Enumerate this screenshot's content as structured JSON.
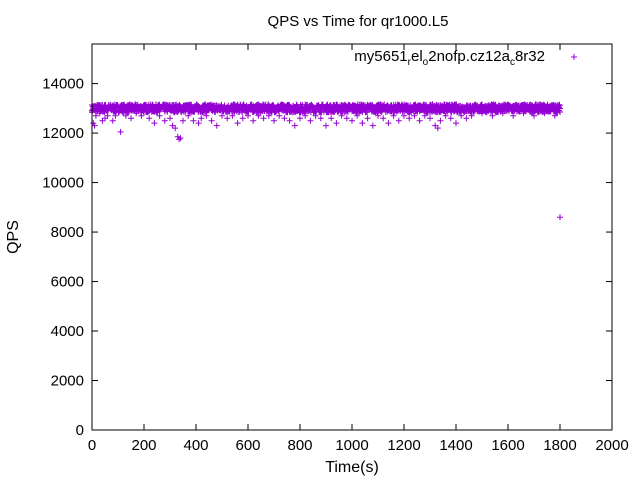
{
  "chart_data": {
    "type": "scatter",
    "title": "QPS vs Time for qr1000.L5",
    "xlabel": "Time(s)",
    "ylabel": "QPS",
    "xlim": [
      0,
      2000
    ],
    "ylim": [
      0,
      15600
    ],
    "x_ticks": [
      0,
      200,
      400,
      600,
      800,
      1000,
      1200,
      1400,
      1600,
      1800,
      2000
    ],
    "y_ticks": [
      0,
      2000,
      4000,
      6000,
      8000,
      10000,
      12000,
      14000
    ],
    "grid": false,
    "legend_position": "top-right",
    "marker": "plus",
    "series": [
      {
        "legend_parts": [
          {
            "text": "my5651",
            "sub": false
          },
          {
            "text": "r",
            "sub": true
          },
          {
            "text": "el",
            "sub": false
          },
          {
            "text": "o",
            "sub": true
          },
          {
            "text": "2nofp.cz12a",
            "sub": false
          },
          {
            "text": "c",
            "sub": true
          },
          {
            "text": "8r32",
            "sub": false
          }
        ],
        "color": "#9400d3",
        "baseline_qps": 13000,
        "x_start": 0,
        "x_end": 1800,
        "points": [
          [
            0,
            12900
          ],
          [
            5,
            12400
          ],
          [
            10,
            12300
          ],
          [
            15,
            12700
          ],
          [
            30,
            12800
          ],
          [
            40,
            12500
          ],
          [
            50,
            12600
          ],
          [
            60,
            12700
          ],
          [
            80,
            12500
          ],
          [
            90,
            12700
          ],
          [
            110,
            12050
          ],
          [
            130,
            12700
          ],
          [
            150,
            12600
          ],
          [
            170,
            12800
          ],
          [
            190,
            12700
          ],
          [
            220,
            12600
          ],
          [
            240,
            12400
          ],
          [
            260,
            12700
          ],
          [
            280,
            12500
          ],
          [
            300,
            12600
          ],
          [
            310,
            12300
          ],
          [
            320,
            12200
          ],
          [
            330,
            11850
          ],
          [
            335,
            11750
          ],
          [
            340,
            11800
          ],
          [
            350,
            12500
          ],
          [
            370,
            12700
          ],
          [
            390,
            12500
          ],
          [
            410,
            12400
          ],
          [
            420,
            12600
          ],
          [
            440,
            12700
          ],
          [
            460,
            12500
          ],
          [
            480,
            12300
          ],
          [
            500,
            12700
          ],
          [
            520,
            12600
          ],
          [
            540,
            12700
          ],
          [
            560,
            12400
          ],
          [
            580,
            12600
          ],
          [
            600,
            12700
          ],
          [
            620,
            12500
          ],
          [
            640,
            12700
          ],
          [
            660,
            12600
          ],
          [
            680,
            12700
          ],
          [
            700,
            12500
          ],
          [
            720,
            12700
          ],
          [
            740,
            12600
          ],
          [
            760,
            12500
          ],
          [
            780,
            12300
          ],
          [
            800,
            12600
          ],
          [
            820,
            12700
          ],
          [
            840,
            12500
          ],
          [
            860,
            12700
          ],
          [
            880,
            12600
          ],
          [
            900,
            12300
          ],
          [
            920,
            12600
          ],
          [
            940,
            12400
          ],
          [
            960,
            12700
          ],
          [
            980,
            12600
          ],
          [
            1000,
            12500
          ],
          [
            1020,
            12700
          ],
          [
            1040,
            12400
          ],
          [
            1060,
            12600
          ],
          [
            1080,
            12300
          ],
          [
            1100,
            12700
          ],
          [
            1120,
            12600
          ],
          [
            1140,
            12400
          ],
          [
            1160,
            12700
          ],
          [
            1180,
            12500
          ],
          [
            1200,
            12700
          ],
          [
            1220,
            12600
          ],
          [
            1240,
            12700
          ],
          [
            1260,
            12500
          ],
          [
            1280,
            12700
          ],
          [
            1300,
            12600
          ],
          [
            1320,
            12300
          ],
          [
            1330,
            12200
          ],
          [
            1340,
            12500
          ],
          [
            1360,
            12700
          ],
          [
            1380,
            12600
          ],
          [
            1400,
            12400
          ],
          [
            1420,
            12700
          ],
          [
            1440,
            12600
          ],
          [
            1460,
            12700
          ],
          [
            1500,
            12800
          ],
          [
            1540,
            12700
          ],
          [
            1580,
            12800
          ],
          [
            1620,
            12700
          ],
          [
            1660,
            12800
          ],
          [
            1700,
            12700
          ],
          [
            1740,
            12800
          ],
          [
            1780,
            12700
          ],
          [
            1800,
            8600
          ]
        ]
      }
    ]
  }
}
